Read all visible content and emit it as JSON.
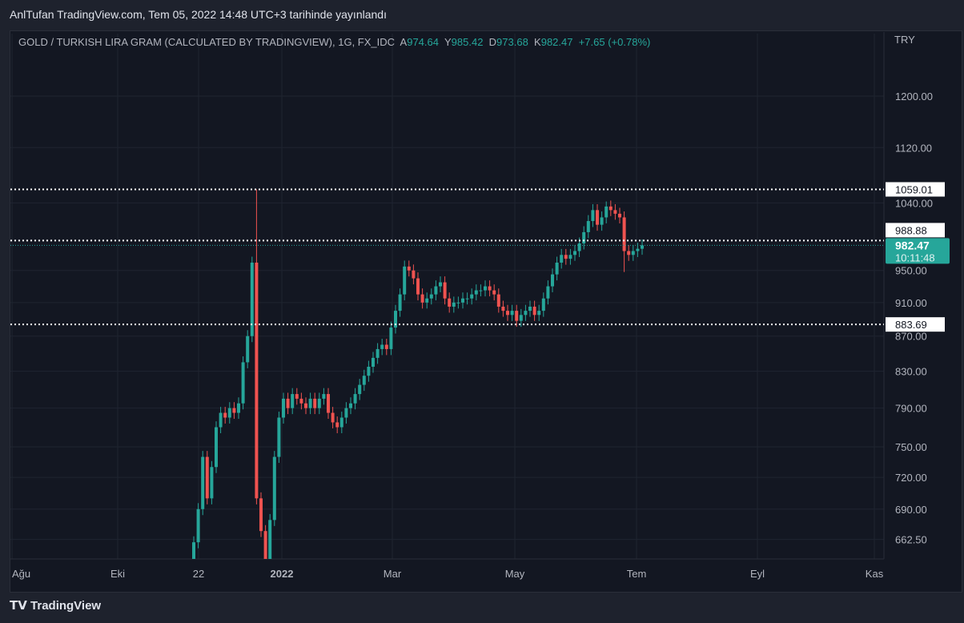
{
  "published": "AnlTufan TradingView.com, Tem 05, 2022 14:48 UTC+3 tarihinde yayınlandı",
  "legend": {
    "symbol": "GOLD / TURKISH LIRA GRAM (CALCULATED BY TRADINGVIEW), 1G, FX_IDC",
    "o_label": "A",
    "o": "974.64",
    "h_label": "Y",
    "h": "985.42",
    "l_label": "D",
    "l": "973.68",
    "c_label": "K",
    "c": "982.47",
    "change": "+7.65 (+0.78%)"
  },
  "currency": "TRY",
  "brand": "TradingView",
  "colors": {
    "up": "#26a69a",
    "down": "#ef5350",
    "bg": "#131722"
  },
  "chart_data": {
    "type": "candlestick",
    "title": "GOLD / TURKISH LIRA GRAM",
    "yscale": "log",
    "ylim": [
      640,
      1240
    ],
    "yticks": [
      "1200.00",
      "1120.00",
      "1040.00",
      "950.00",
      "910.00",
      "870.00",
      "830.00",
      "790.00",
      "750.00",
      "720.00",
      "690.00",
      "662.50"
    ],
    "ytick_values": [
      1200,
      1120,
      1040,
      950,
      910,
      870,
      830,
      790,
      750,
      720,
      690,
      662.5
    ],
    "xticks": [
      "Ağu",
      "Eki",
      "22",
      "2022",
      "Mar",
      "May",
      "Tem",
      "Eyl",
      "Kas"
    ],
    "horizontal_lines": [
      {
        "value": 1059.01,
        "label": "1059.01"
      },
      {
        "value": 988.88,
        "label": "988.88"
      },
      {
        "value": 883.69,
        "label": "883.69"
      }
    ],
    "last_price": {
      "value": 982.47,
      "label": "982.47",
      "countdown": "10:11:48"
    },
    "closes": [
      660,
      690,
      740,
      700,
      730,
      770,
      785,
      780,
      790,
      785,
      795,
      840,
      870,
      960,
      700,
      670,
      640,
      680,
      740,
      780,
      800,
      790,
      805,
      800,
      795,
      790,
      800,
      790,
      800,
      805,
      785,
      775,
      770,
      780,
      790,
      795,
      805,
      815,
      825,
      835,
      845,
      855,
      860,
      855,
      880,
      900,
      920,
      955,
      950,
      940,
      920,
      910,
      915,
      920,
      930,
      935,
      915,
      905,
      910,
      910,
      915,
      915,
      920,
      925,
      925,
      930,
      925,
      920,
      905,
      900,
      895,
      900,
      888,
      895,
      900,
      905,
      895,
      900,
      915,
      930,
      945,
      960,
      970,
      965,
      970,
      975,
      985,
      1000,
      1015,
      1030,
      1010,
      1020,
      1035,
      1030,
      1025,
      1020,
      975,
      970,
      975,
      978,
      982.47
    ],
    "high_overrides": [
      {
        "index": 14,
        "high": 1059.01
      },
      {
        "index": 92,
        "high": 1042
      }
    ],
    "low_overrides": [
      {
        "index": 96,
        "low": 948
      }
    ]
  }
}
